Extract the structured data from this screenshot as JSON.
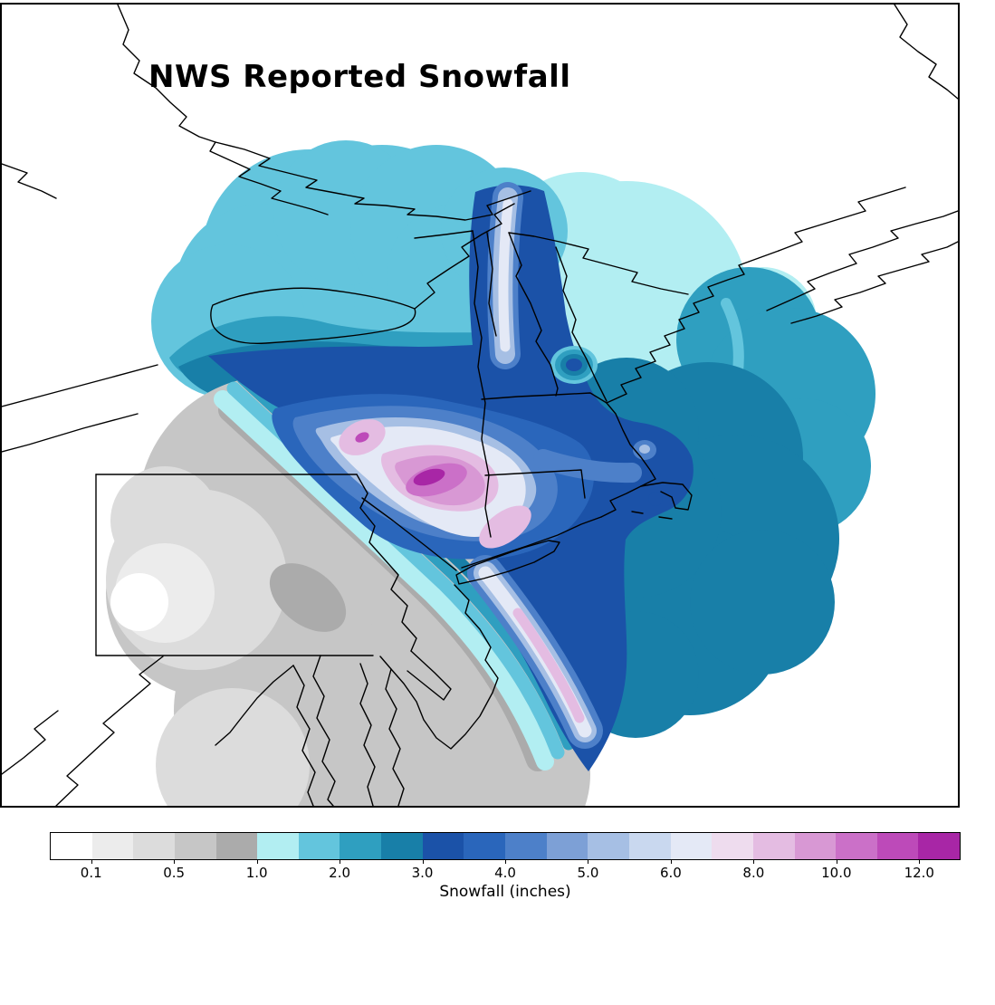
{
  "title": "NWS Reported Snowfall",
  "colorbar": {
    "label": "Snowfall (inches)",
    "tick_labels": [
      "0.1",
      "0.5",
      "1.0",
      "2.0",
      "3.0",
      "4.0",
      "5.0",
      "6.0",
      "8.0",
      "10.0",
      "12.0"
    ],
    "labeled_boundary_indices": [
      1,
      3,
      5,
      7,
      9,
      11,
      13,
      15,
      17,
      19,
      21
    ],
    "colors": [
      "#ffffff",
      "#ececec",
      "#dcdcdc",
      "#c6c6c6",
      "#ababab",
      "#b2eef2",
      "#63c5dd",
      "#2f9fc0",
      "#187fa8",
      "#1b52a8",
      "#2a66bb",
      "#4d80c9",
      "#7da0d6",
      "#a6bfe4",
      "#c9d8ef",
      "#e4e9f6",
      "#eedcee",
      "#e4bce2",
      "#d898d4",
      "#cb70c8",
      "#bd4ab9",
      "#a826a6"
    ]
  },
  "chart_data": {
    "type": "heatmap",
    "title": "NWS Reported Snowfall",
    "colorbar_label": "Snowfall (inches)",
    "units": "inches",
    "tick_labels": [
      "0.1",
      "0.5",
      "1.0",
      "2.0",
      "3.0",
      "4.0",
      "5.0",
      "6.0",
      "8.0",
      "10.0",
      "12.0"
    ],
    "legend_position": "bottom",
    "notes": "Filled contour map over the northeastern US. Light grays (0.1-1 in) cover PA/NJ/MD to the southwest; cyan/teal (1-3 in) cover upstate NY, Maine and offshore waters; dark blue bands (3-4 in) cross central New England and the coastal front; palest blues (5-7 in) with pink/magenta maxima (8-12+ in) over eastern NY and western New England; a pink streak (8 in) lies along coastal NJ."
  }
}
